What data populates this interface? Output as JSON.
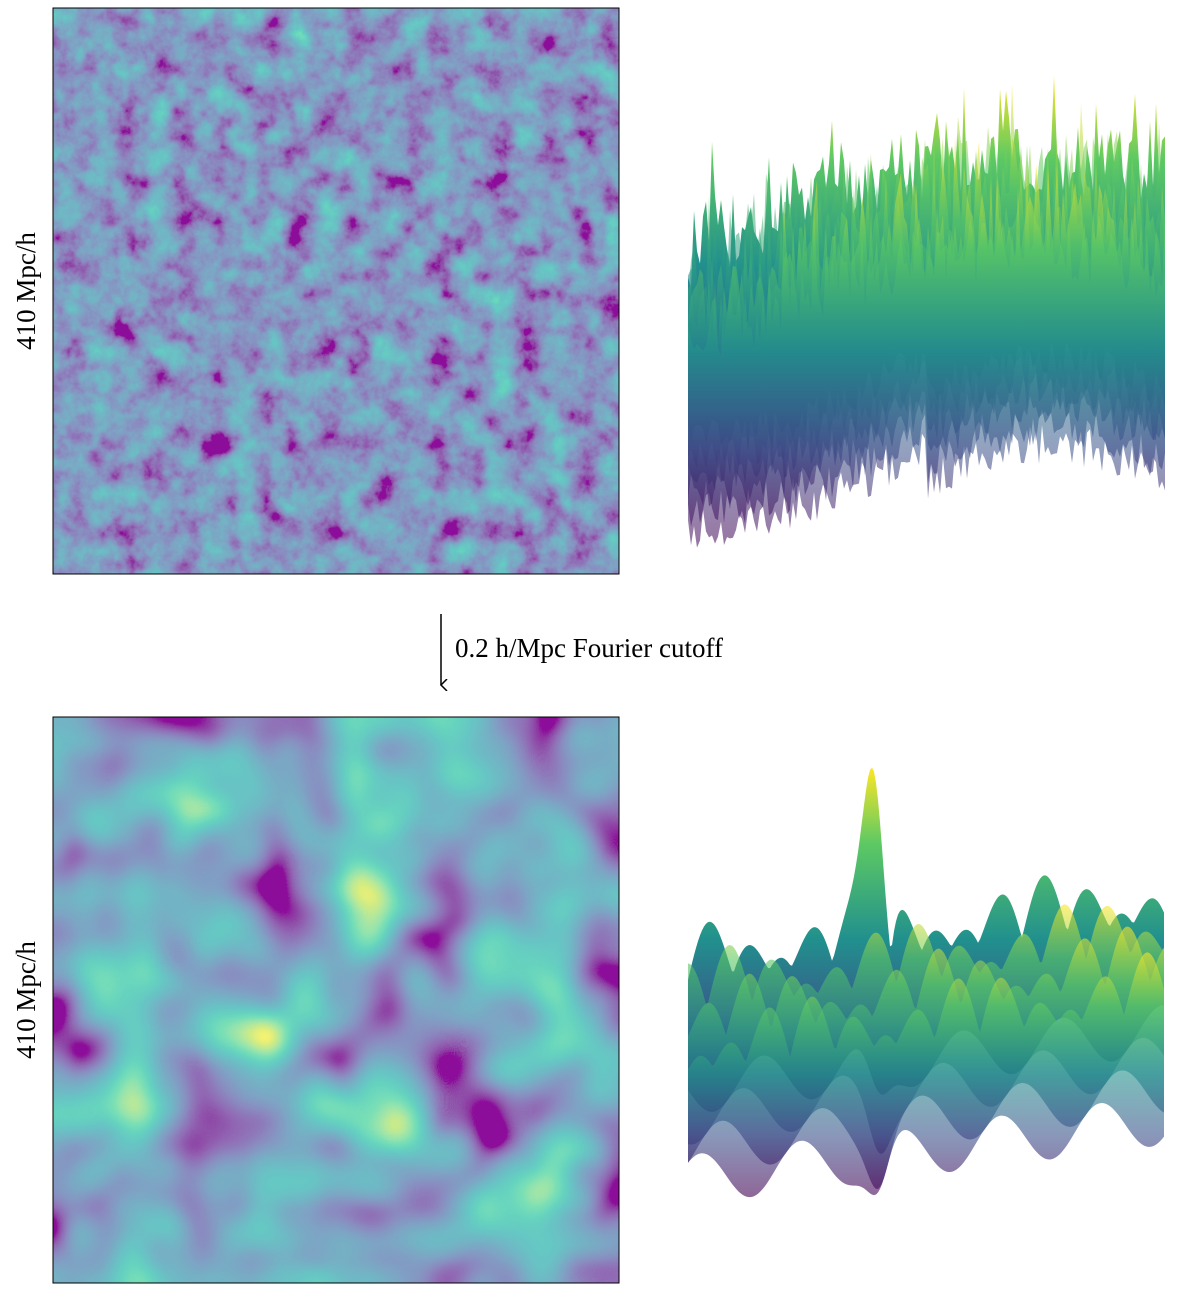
{
  "panels": [
    {
      "ylabel": "410 Mpc/h"
    },
    {
      "ylabel": "410 Mpc/h"
    }
  ],
  "arrow": {
    "label": "0.2 h/Mpc Fourier cutoff"
  }
}
